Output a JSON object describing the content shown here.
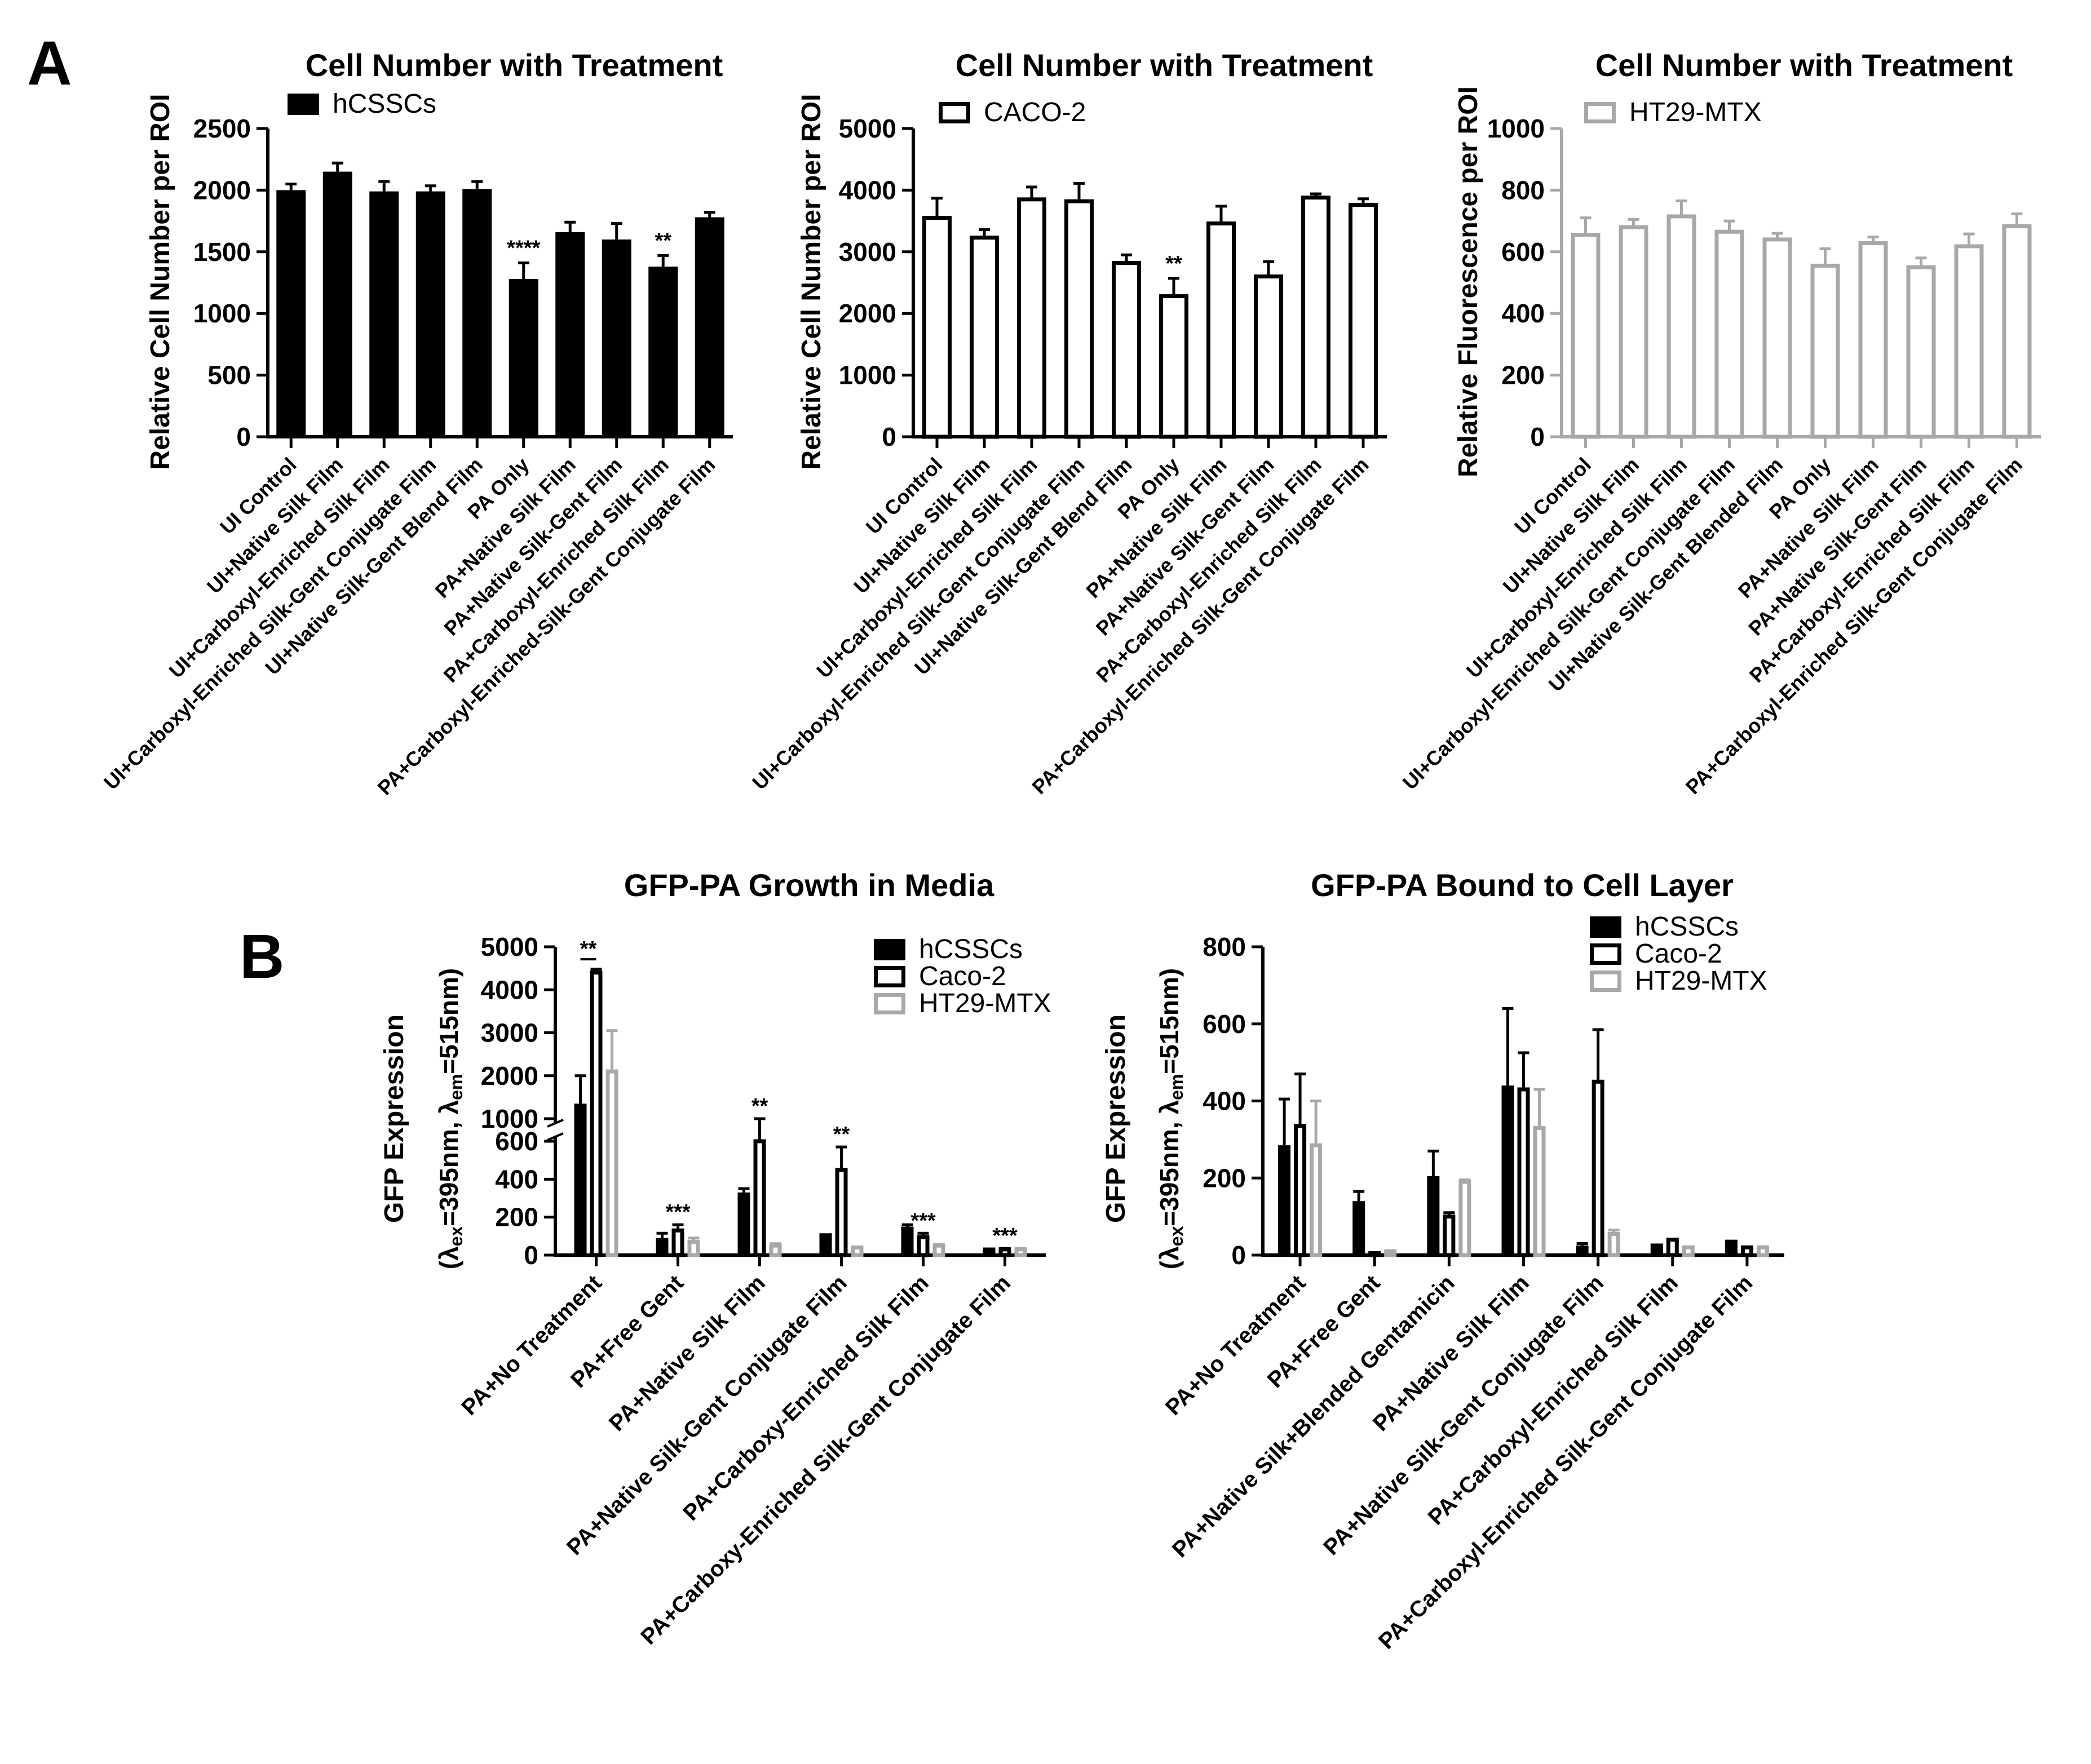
{
  "panel_labels": [
    "A",
    "B"
  ],
  "colors": {
    "black": "#000000",
    "white": "#ffffff",
    "gray": "#a8a8a8"
  },
  "chart_data": [
    {
      "id": "a1",
      "type": "bar",
      "title": "Cell Number with Treatment",
      "ylabel": "Relative Cell Number per ROI",
      "ylim": [
        0,
        2500
      ],
      "yticks": [
        0,
        500,
        1000,
        1500,
        2000,
        2500
      ],
      "categories": [
        "UI Control",
        "UI+Native Silk Film",
        "UI+Carboxyl-Enriched Silk Film",
        "UI+Carboxyl-Enriched Silk-Gent Conjugate Film",
        "UI+Native Silk-Gent Blend Film",
        "PA Only",
        "PA+Native Silk Film",
        "PA+Native Silk-Gent Film",
        "PA+Carboxyl-Enriched Silk Film",
        "PA+Carboxyl-Enriched-Silk-Gent Conjugate Film"
      ],
      "series": [
        {
          "name": "hCSSCs",
          "style": "black",
          "values": [
            2000,
            2150,
            1990,
            1990,
            2010,
            1280,
            1660,
            1600,
            1380,
            1780
          ],
          "errors": [
            50,
            70,
            80,
            45,
            60,
            130,
            80,
            130,
            90,
            40
          ]
        }
      ],
      "annotations": [
        {
          "cat": 5,
          "text": "****"
        },
        {
          "cat": 8,
          "text": "**"
        }
      ]
    },
    {
      "id": "a2",
      "type": "bar",
      "title": "Cell Number with Treatment",
      "ylabel": "Relative Cell Number per ROI",
      "ylim": [
        0,
        5000
      ],
      "yticks": [
        0,
        1000,
        2000,
        3000,
        4000,
        5000
      ],
      "categories": [
        "UI Control",
        "UI+Native Silk Film",
        "UI+Carboxyl-Enriched Silk Film",
        "UI+Carboxyl-Enriched Silk-Gent Conjugate Film",
        "UI+Native Silk-Gent Blend Film",
        "PA Only",
        "PA+Native Silk Film",
        "PA+Native Silk-Gent Film",
        "PA+Carboxyl-Enriched Silk Film",
        "PA+Carboxyl-Enriched Silk-Gent Conjugate Film"
      ],
      "series": [
        {
          "name": "CACO-2",
          "style": "white",
          "values": [
            3550,
            3230,
            3850,
            3820,
            2820,
            2280,
            3460,
            2600,
            3880,
            3760
          ],
          "errors": [
            320,
            130,
            200,
            290,
            130,
            290,
            280,
            240,
            60,
            100
          ]
        }
      ],
      "annotations": [
        {
          "cat": 5,
          "text": "**"
        }
      ]
    },
    {
      "id": "a3",
      "type": "bar",
      "title": "Cell Number with Treatment",
      "ylabel": "Relative Fluorescence per ROI",
      "ylim": [
        0,
        1000
      ],
      "yticks": [
        0,
        200,
        400,
        600,
        800,
        1000
      ],
      "categories": [
        "UI Control",
        "UI+Native Silk Film",
        "UI+Carboxyl-Enriched Silk Film",
        "UI+Carboxyl-Enriched Silk-Gent Conjugate Film",
        "UI+Native Silk-Gent Blended Film",
        "PA Only",
        "PA+Native Silk Film",
        "PA+Native Silk-Gent Film",
        "PA+Carboxyl-Enriched Silk Film",
        "PA+Carboxyl-Enriched Silk-Gent Conjugate Film"
      ],
      "series": [
        {
          "name": "HT29-MTX",
          "style": "gray",
          "values": [
            655,
            680,
            715,
            665,
            640,
            555,
            628,
            550,
            618,
            683
          ],
          "errors": [
            55,
            25,
            50,
            35,
            20,
            55,
            20,
            30,
            40,
            40
          ]
        }
      ],
      "annotations": []
    },
    {
      "id": "b1",
      "type": "bar",
      "title": "GFP-PA Growth in Media",
      "ylabel": "GFP Expression",
      "ylabel2": [
        "(λ",
        "ex",
        "=395nm, λ",
        "em",
        "=515nm)"
      ],
      "ylim": [
        0,
        5000
      ],
      "axis_break": {
        "lower": [
          0,
          600
        ],
        "upper": [
          1000,
          5000
        ]
      },
      "yticks": [
        0,
        200,
        400,
        600,
        1000,
        2000,
        3000,
        4000,
        5000
      ],
      "categories": [
        "PA+No Treatment",
        "PA+Free Gent",
        "PA+Native Silk Film",
        "PA+Native Silk-Gent Conjugate Film",
        "PA+Carboxy-Enriched Silk Film",
        "PA+Carboxy-Enriched Silk-Gent Conjugate Film"
      ],
      "series": [
        {
          "name": "hCSSCs",
          "style": "black",
          "values": [
            1350,
            90,
            330,
            115,
            150,
            40
          ],
          "errors": [
            650,
            25,
            20,
            0,
            10,
            0
          ]
        },
        {
          "name": "Caco-2",
          "style": "white",
          "values": [
            4400,
            130,
            600,
            450,
            95,
            30
          ],
          "errors": [
            80,
            30,
            30,
            120,
            20,
            5
          ]
        },
        {
          "name": "HT29-MTX",
          "style": "gray",
          "values": [
            2100,
            70,
            50,
            40,
            50,
            30
          ],
          "errors": [
            950,
            20,
            10,
            0,
            5,
            5
          ]
        }
      ],
      "annotations": [
        {
          "cat": 0,
          "text": "**",
          "bracket": true
        },
        {
          "cat": 1,
          "text": "***"
        },
        {
          "cat": 2,
          "text": "**"
        },
        {
          "cat": 3,
          "text": "**"
        },
        {
          "cat": 4,
          "text": "***"
        },
        {
          "cat": 5,
          "text": "***"
        }
      ]
    },
    {
      "id": "b2",
      "type": "bar",
      "title": "GFP-PA Bound to Cell  Layer",
      "ylabel": "GFP Expression",
      "ylabel2": [
        "(λ",
        "ex",
        "=395nm, λ",
        "em",
        "=515nm)"
      ],
      "ylim": [
        0,
        800
      ],
      "yticks": [
        0,
        200,
        400,
        600,
        800
      ],
      "categories": [
        "PA+No Treatment",
        "PA+Free Gent",
        "PA+Native Silk+Blended Gentamicin",
        "PA+Native Silk Film",
        "PA+Native Silk-Gent Conjugate Film",
        "PA+Carboxyl-Enriched Silk Film",
        "PA+Carboxyl-Enriched Silk-Gent Conjugate Film"
      ],
      "series": [
        {
          "name": "hCSSCs",
          "style": "black",
          "values": [
            285,
            140,
            205,
            440,
            25,
            30,
            40
          ],
          "errors": [
            120,
            25,
            65,
            200,
            5,
            0,
            0
          ]
        },
        {
          "name": "Caco-2",
          "style": "white",
          "values": [
            335,
            5,
            100,
            430,
            450,
            40,
            20
          ],
          "errors": [
            135,
            0,
            10,
            95,
            135,
            0,
            0
          ]
        },
        {
          "name": "HT29-MTX",
          "style": "gray",
          "values": [
            285,
            10,
            190,
            330,
            55,
            20,
            20
          ],
          "errors": [
            115,
            0,
            5,
            100,
            10,
            0,
            0
          ]
        }
      ],
      "annotations": []
    }
  ]
}
